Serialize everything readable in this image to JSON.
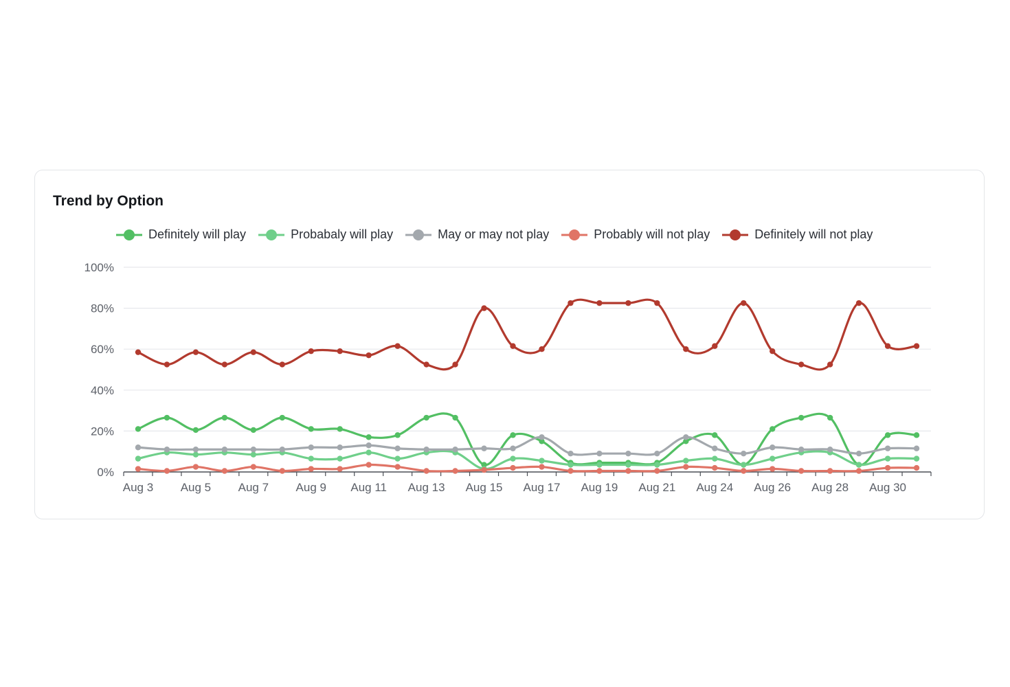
{
  "card": {
    "title": "Trend by Option"
  },
  "chart_data": {
    "type": "line",
    "title": "Trend by Option",
    "xlabel": "",
    "ylabel": "",
    "ylim": [
      0,
      100
    ],
    "y_ticks": [
      "0%",
      "20%",
      "40%",
      "60%",
      "80%",
      "100%"
    ],
    "x": [
      "Aug 3",
      "Aug 4",
      "Aug 5",
      "Aug 6",
      "Aug 7",
      "Aug 8",
      "Aug 9",
      "Aug 10",
      "Aug 11",
      "Aug 12",
      "Aug 13",
      "Aug 14",
      "Aug 15",
      "Aug 16",
      "Aug 17",
      "Aug 18",
      "Aug 19",
      "Aug 20",
      "Aug 21",
      "Aug 22",
      "Aug 24",
      "Aug 25",
      "Aug 26",
      "Aug 27",
      "Aug 28",
      "Aug 29",
      "Aug 30",
      "Aug 31"
    ],
    "x_tick_labels": [
      "Aug 3",
      "Aug 5",
      "Aug 7",
      "Aug 9",
      "Aug 11",
      "Aug 13",
      "Aug 15",
      "Aug 17",
      "Aug 19",
      "Aug 21",
      "Aug 24",
      "Aug 26",
      "Aug 28",
      "Aug 30"
    ],
    "legend_position": "top",
    "grid": true,
    "series": [
      {
        "name": "Definitely will play",
        "color": "#52bf63",
        "values": [
          21,
          26.5,
          20.5,
          26.5,
          20.5,
          26.5,
          21,
          21,
          17,
          18,
          26.5,
          26.5,
          3.5,
          18,
          15,
          4.5,
          4.5,
          4.5,
          4.5,
          15,
          18,
          3.5,
          21,
          26.5,
          26.5,
          3.5,
          18,
          18
        ]
      },
      {
        "name": "Probabaly will play",
        "color": "#6fcf8a",
        "values": [
          6.5,
          9.5,
          8.5,
          9.5,
          8.5,
          9.5,
          6.5,
          6.5,
          9.5,
          6.5,
          9.5,
          9.5,
          1.5,
          6.5,
          5.5,
          3.5,
          3.5,
          3.5,
          3.5,
          5.5,
          6.5,
          3.5,
          6.5,
          9.5,
          9.5,
          3.5,
          6.5,
          6.5
        ]
      },
      {
        "name": "May or may not play",
        "color": "#a3a8ad",
        "values": [
          12,
          11,
          11,
          11,
          11,
          11,
          12,
          12,
          13,
          11.5,
          11,
          11,
          11.5,
          11.5,
          17,
          9,
          9,
          9,
          9,
          17,
          11.5,
          9,
          12,
          11,
          11,
          9,
          11.5,
          11.5
        ]
      },
      {
        "name": "Probably will not play",
        "color": "#e07466",
        "values": [
          1.5,
          0.5,
          2.5,
          0.5,
          2.5,
          0.5,
          1.5,
          1.5,
          3.5,
          2.5,
          0.5,
          0.5,
          1,
          2,
          2.5,
          0.5,
          0.5,
          0.5,
          0.5,
          2.5,
          2,
          0.5,
          1.5,
          0.5,
          0.5,
          0.5,
          2,
          2
        ]
      },
      {
        "name": "Definitely will not play",
        "color": "#b23a2e",
        "values": [
          58.5,
          52.5,
          58.5,
          52.5,
          58.5,
          52.5,
          59,
          59,
          57,
          61.5,
          52.5,
          52.5,
          80,
          61.5,
          60,
          82.5,
          82.5,
          82.5,
          82.5,
          60,
          61.5,
          82.5,
          59,
          52.5,
          52.5,
          82.5,
          61.5,
          61.5
        ]
      }
    ]
  }
}
